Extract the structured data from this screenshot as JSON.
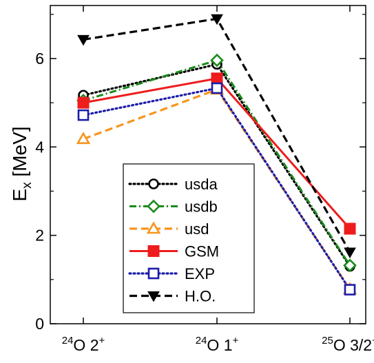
{
  "chart_data": {
    "type": "line",
    "ylabel_main": "E",
    "ylabel_sub": "x",
    "ylabel_unit": " [MeV]",
    "ylim": [
      0,
      7.2
    ],
    "yticks": [
      0,
      2,
      4,
      6
    ],
    "grid": false,
    "legend_position": "lower-center",
    "categories": [
      {
        "mass": "24",
        "label": "O 2",
        "sup": "+"
      },
      {
        "mass": "24",
        "label": "O 1",
        "sup": "+"
      },
      {
        "mass": "25",
        "label": "O 3/2",
        "sup": "+"
      }
    ],
    "series": [
      {
        "name": "usda",
        "values": [
          5.17,
          5.87,
          1.3
        ],
        "color": "#000000",
        "dash": "dotted",
        "marker": "circle"
      },
      {
        "name": "usdb",
        "values": [
          5.05,
          5.96,
          1.32
        ],
        "color": "#1a8a1a",
        "dash": "dashdot",
        "marker": "diamond"
      },
      {
        "name": "usd",
        "values": [
          4.18,
          5.3,
          0.78
        ],
        "color": "#f7941d",
        "dash": "dashed",
        "marker": "triangle-up"
      },
      {
        "name": "GSM",
        "values": [
          5.0,
          5.55,
          2.15
        ],
        "color": "#ee1c1c",
        "dash": "solid",
        "marker": "square-filled"
      },
      {
        "name": "EXP",
        "values": [
          4.72,
          5.33,
          0.77
        ],
        "color": "#1c1ca8",
        "dash": "dotted",
        "marker": "square"
      },
      {
        "name": "H.O.",
        "values": [
          6.43,
          6.9,
          1.62
        ],
        "color": "#000000",
        "dash": "dashed",
        "marker": "triangle-down-filled"
      }
    ]
  }
}
